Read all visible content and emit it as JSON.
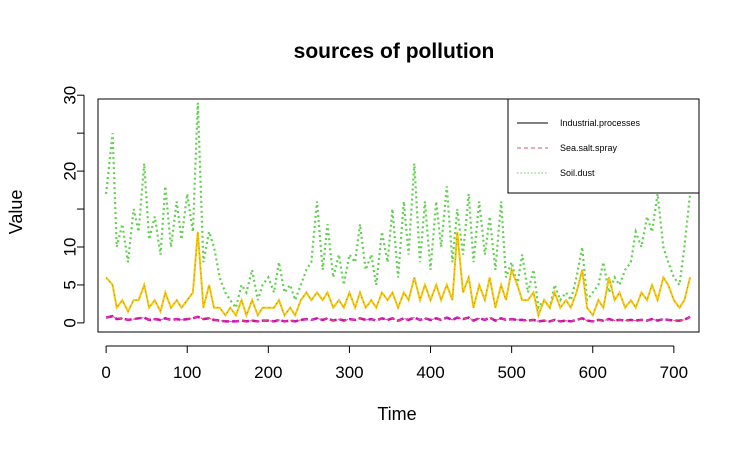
{
  "chart_data": {
    "type": "line",
    "title": "sources of pollution",
    "xlabel": "Time",
    "ylabel": "Value",
    "xlim": [
      -10,
      731
    ],
    "ylim": [
      -1.2,
      29.5
    ],
    "xticks": [
      0,
      100,
      200,
      300,
      400,
      500,
      600,
      700
    ],
    "yticks": [
      0,
      5,
      10,
      20,
      30
    ],
    "yminor": [
      15,
      25
    ],
    "legend_position": "top-right",
    "colors": {
      "industrial": "#000000",
      "sea_salt": "#DF536B",
      "soil": "#61D04F",
      "total": "#F5C710",
      "sea_band": "#CD0BBC"
    },
    "legend": [
      {
        "label": "Industrial.processes",
        "color": "#000000",
        "dash": "solid"
      },
      {
        "label": "Sea.salt.spray",
        "color": "#DF536B",
        "dash": "dashed"
      },
      {
        "label": "Soil.dust",
        "color": "#61D04F",
        "dash": "dotted"
      }
    ],
    "series": [
      {
        "name": "Soil.dust",
        "x": [
          0,
          8,
          13,
          20,
          27,
          34,
          40,
          47,
          53,
          60,
          67,
          73,
          80,
          87,
          93,
          100,
          107,
          113,
          120,
          127,
          133,
          140,
          147,
          153,
          160,
          167,
          173,
          180,
          187,
          193,
          200,
          207,
          213,
          220,
          227,
          233,
          240,
          247,
          253,
          260,
          267,
          273,
          280,
          287,
          293,
          300,
          307,
          313,
          320,
          327,
          333,
          340,
          347,
          353,
          360,
          367,
          373,
          380,
          387,
          393,
          400,
          407,
          413,
          420,
          427,
          433,
          440,
          447,
          453,
          460,
          467,
          473,
          480,
          487,
          493,
          500,
          507,
          513,
          520,
          527,
          533,
          540,
          547,
          553,
          560,
          567,
          573,
          580,
          587,
          593,
          600,
          607,
          613,
          620,
          627,
          633,
          640,
          647,
          653,
          660,
          667,
          673,
          680,
          687,
          693,
          700,
          707,
          713,
          720
        ],
        "y": [
          17,
          25,
          10,
          13,
          8,
          15,
          12,
          21,
          11,
          14,
          9,
          18,
          10,
          16,
          11,
          17,
          12,
          29,
          8,
          12,
          10,
          6,
          4,
          3,
          2,
          5,
          4,
          7,
          3,
          5,
          6,
          4,
          8,
          4,
          5,
          3,
          5,
          7,
          8,
          16,
          7,
          13,
          6,
          9,
          5,
          9,
          8,
          13,
          7,
          9,
          5,
          12,
          8,
          15,
          6,
          16,
          9,
          21,
          8,
          16,
          7,
          16,
          10,
          18,
          8,
          15,
          9,
          17,
          8,
          16,
          9,
          14,
          7,
          16,
          6,
          8,
          5,
          9,
          4,
          7,
          2,
          3,
          2,
          5,
          3,
          4,
          3,
          6,
          10,
          3,
          4,
          5,
          8,
          4,
          6,
          5,
          7,
          8,
          12,
          10,
          14,
          12,
          17,
          10,
          8,
          6,
          5,
          10,
          17
        ]
      },
      {
        "name": "",
        "x": [
          0,
          8,
          13,
          20,
          27,
          34,
          40,
          47,
          53,
          60,
          67,
          73,
          80,
          87,
          93,
          100,
          107,
          113,
          120,
          127,
          133,
          140,
          147,
          153,
          160,
          167,
          173,
          180,
          187,
          193,
          200,
          207,
          213,
          220,
          227,
          233,
          240,
          247,
          253,
          260,
          267,
          273,
          280,
          287,
          293,
          300,
          307,
          313,
          320,
          327,
          333,
          340,
          347,
          353,
          360,
          367,
          373,
          380,
          387,
          393,
          400,
          407,
          413,
          420,
          427,
          433,
          440,
          447,
          453,
          460,
          467,
          473,
          480,
          487,
          493,
          500,
          507,
          513,
          520,
          527,
          533,
          540,
          547,
          553,
          560,
          567,
          573,
          580,
          587,
          593,
          600,
          607,
          613,
          620,
          627,
          633,
          640,
          647,
          653,
          660,
          667,
          673,
          680,
          687,
          693,
          700,
          707,
          713,
          720
        ],
        "y": [
          6,
          5,
          2,
          3,
          1.5,
          3,
          3,
          5,
          2,
          3,
          1.5,
          4,
          2,
          3,
          2,
          3,
          4,
          12,
          2,
          5,
          2,
          2,
          1,
          2,
          1,
          3,
          1,
          3,
          1,
          2,
          2,
          2,
          3,
          1,
          2,
          1,
          3,
          4,
          3,
          4,
          3,
          4,
          2,
          3,
          2,
          4,
          2,
          4,
          2,
          3,
          2,
          4,
          3,
          4,
          2,
          4,
          3,
          6,
          3,
          5,
          3,
          5,
          3,
          5,
          3,
          12,
          4,
          6,
          2,
          5,
          3,
          6,
          2,
          5,
          3,
          7,
          5,
          3,
          3,
          4,
          1,
          3,
          2,
          4,
          2,
          3,
          2,
          4,
          7,
          2,
          1,
          3,
          2,
          6,
          3,
          4,
          2,
          3,
          2,
          4,
          3,
          5,
          3,
          6,
          5,
          3,
          2,
          3,
          6
        ]
      },
      {
        "name": "",
        "x": [
          0,
          8,
          13,
          20,
          27,
          34,
          40,
          47,
          53,
          60,
          67,
          73,
          80,
          87,
          93,
          100,
          107,
          113,
          120,
          127,
          133,
          140,
          147,
          153,
          160,
          167,
          173,
          180,
          187,
          193,
          200,
          207,
          213,
          220,
          227,
          233,
          240,
          247,
          253,
          260,
          267,
          273,
          280,
          287,
          293,
          300,
          307,
          313,
          320,
          327,
          333,
          340,
          347,
          353,
          360,
          367,
          373,
          380,
          387,
          393,
          400,
          407,
          413,
          420,
          427,
          433,
          440,
          447,
          453,
          460,
          467,
          473,
          480,
          487,
          493,
          500,
          507,
          513,
          520,
          527,
          533,
          540,
          547,
          553,
          560,
          567,
          573,
          580,
          587,
          593,
          600,
          607,
          613,
          620,
          627,
          633,
          640,
          647,
          653,
          660,
          667,
          673,
          680,
          687,
          693,
          700,
          707,
          713,
          720
        ],
        "y": [
          0.7,
          0.9,
          0.5,
          0.6,
          0.4,
          0.5,
          0.6,
          0.7,
          0.4,
          0.5,
          0.4,
          0.6,
          0.4,
          0.5,
          0.4,
          0.5,
          0.6,
          0.8,
          0.5,
          0.6,
          0.4,
          0.3,
          0.2,
          0.2,
          0.2,
          0.3,
          0.2,
          0.3,
          0.2,
          0.3,
          0.3,
          0.2,
          0.4,
          0.2,
          0.3,
          0.2,
          0.4,
          0.5,
          0.4,
          0.6,
          0.4,
          0.6,
          0.3,
          0.5,
          0.3,
          0.5,
          0.4,
          0.6,
          0.4,
          0.5,
          0.3,
          0.6,
          0.4,
          0.6,
          0.3,
          0.6,
          0.4,
          0.7,
          0.4,
          0.6,
          0.4,
          0.6,
          0.4,
          0.7,
          0.4,
          0.7,
          0.5,
          0.7,
          0.3,
          0.6,
          0.4,
          0.7,
          0.3,
          0.6,
          0.4,
          0.5,
          0.4,
          0.4,
          0.3,
          0.4,
          0.2,
          0.3,
          0.2,
          0.4,
          0.2,
          0.3,
          0.2,
          0.4,
          0.6,
          0.3,
          0.2,
          0.4,
          0.3,
          0.5,
          0.3,
          0.4,
          0.3,
          0.4,
          0.3,
          0.4,
          0.3,
          0.5,
          0.3,
          0.5,
          0.4,
          0.3,
          0.3,
          0.4,
          0.8
        ]
      }
    ]
  }
}
